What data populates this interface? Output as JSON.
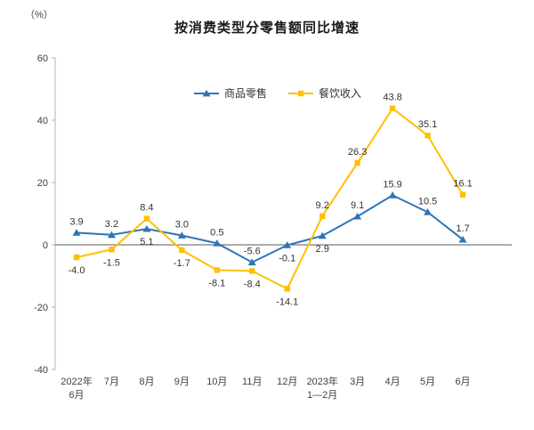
{
  "chart_data": {
    "type": "line",
    "title": "按消费类型分零售额同比增速",
    "unit_label": "（%）",
    "categories": [
      [
        "2022年",
        "6月"
      ],
      [
        "7月"
      ],
      [
        "8月"
      ],
      [
        "9月"
      ],
      [
        "10月"
      ],
      [
        "11月"
      ],
      [
        "12月"
      ],
      [
        "2023年",
        "1—2月"
      ],
      [
        "3月"
      ],
      [
        "4月"
      ],
      [
        "5月"
      ],
      [
        "6月"
      ]
    ],
    "series": [
      {
        "name": "商品零售",
        "semantic": "goods-retail",
        "color": "#2E75B6",
        "marker": "triangle",
        "values": [
          3.9,
          3.2,
          5.1,
          3.0,
          0.5,
          -5.6,
          -0.1,
          2.9,
          9.1,
          15.9,
          10.5,
          1.7
        ],
        "labels": [
          "3.9",
          "3.2",
          "5.1",
          "3.0",
          "0.5",
          "-5.6",
          "-0.1",
          "2.9",
          "9.1",
          "15.9",
          "10.5",
          "1.7"
        ],
        "label_side": [
          "above",
          "above",
          "below",
          "above",
          "above",
          "above",
          "below",
          "below",
          "above",
          "above",
          "above",
          "above"
        ]
      },
      {
        "name": "餐饮收入",
        "semantic": "catering-income",
        "color": "#FFC000",
        "marker": "square",
        "values": [
          -4.0,
          -1.5,
          8.4,
          -1.7,
          -8.1,
          -8.4,
          -14.1,
          9.2,
          26.3,
          43.8,
          35.1,
          16.1
        ],
        "labels": [
          "-4.0",
          "-1.5",
          "8.4",
          "-1.7",
          "-8.1",
          "-8.4",
          "-14.1",
          "9.2",
          "26.3",
          "43.8",
          "35.1",
          "16.1"
        ],
        "label_side": [
          "below",
          "below",
          "above",
          "below",
          "below",
          "below",
          "below",
          "above",
          "above",
          "above",
          "above",
          "above"
        ]
      }
    ],
    "y_ticks": [
      60,
      40,
      20,
      0,
      -20,
      -40
    ],
    "ylim": [
      -40,
      60
    ],
    "grid": false,
    "legend_position": "top-center",
    "colors": {
      "axis": "#b3b3b3",
      "zero_line": "#595959",
      "tick_text": "#404040",
      "label_text": "#333333"
    }
  }
}
